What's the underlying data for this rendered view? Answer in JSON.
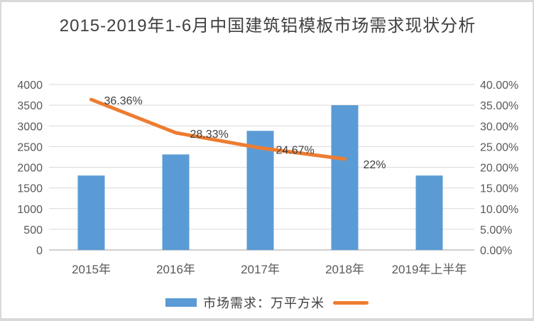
{
  "window": {
    "background": "#FFFFFF",
    "frame_border_color": "#D9D9D9"
  },
  "colors": {
    "bar": "#5B9BD5",
    "line": "#ED7D31",
    "grid": "#D9D9D9",
    "axis_line": "#BFBFBF",
    "tick_text": "#595959",
    "title_text": "#404040",
    "data_label_text": "#404040",
    "legend_text": "#404040"
  },
  "chart_data": {
    "type": "combo-bar-line",
    "title": "2015-2019年1-6月中国建筑铝模板市场需求现状分析",
    "categories": [
      "2015年",
      "2016年",
      "2017年",
      "2018年",
      "2019年上半年"
    ],
    "series": [
      {
        "name": "市场需求：万平方米",
        "type": "bar",
        "axis": "left",
        "color": "#5B9BD5",
        "values": [
          1800,
          2310,
          2880,
          3500,
          1800
        ]
      },
      {
        "name": "",
        "type": "line",
        "axis": "right",
        "color": "#ED7D31",
        "values": [
          36.36,
          28.33,
          24.67,
          22,
          null
        ],
        "labels": [
          "36.36%",
          "28.33%",
          "24.67%",
          "22%"
        ]
      }
    ],
    "left_axis": {
      "min": 0,
      "max": 4000,
      "ticks": [
        "4000",
        "3500",
        "3000",
        "2500",
        "2000",
        "1500",
        "1000",
        "500",
        "0"
      ]
    },
    "right_axis": {
      "min": 0,
      "max": 40,
      "ticks": [
        "40.00%",
        "35.00%",
        "30.00%",
        "25.00%",
        "20.00%",
        "15.00%",
        "10.00%",
        "5.00%",
        "0.00%"
      ]
    },
    "grid": true,
    "legend_position": "bottom"
  },
  "legend": {
    "bar_label": "市场需求：万平方米",
    "line_label": ""
  }
}
